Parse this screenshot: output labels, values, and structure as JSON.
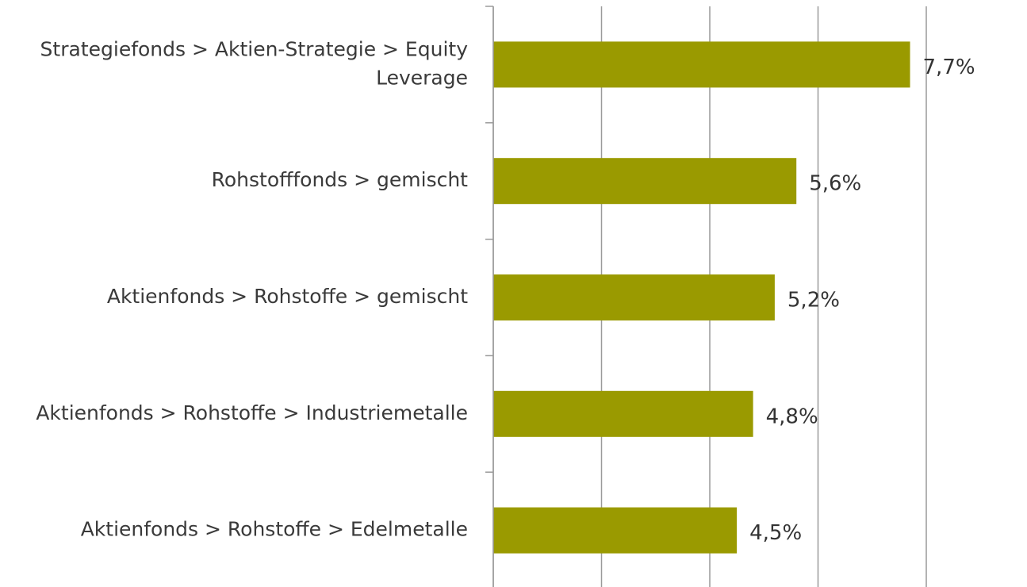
{
  "chart_data": {
    "type": "bar",
    "orientation": "horizontal",
    "categories": [
      "Strategiefonds > Aktien-Strategie > Equity Leverage",
      "Rohstofffonds > gemischt",
      "Aktienfonds > Rohstoffe > gemischt",
      "Aktienfonds > Rohstoffe > Industriemetalle",
      "Aktienfonds > Rohstoffe > Edelmetalle"
    ],
    "values": [
      7.7,
      5.6,
      5.2,
      4.8,
      4.5
    ],
    "value_labels": [
      "7,7%",
      "5,6%",
      "5,2%",
      "4,8%",
      "4,5%"
    ],
    "color": "#9a9a00",
    "xlim": [
      0,
      8
    ],
    "xticks": [
      0,
      2,
      4,
      6,
      8
    ],
    "grid": true
  }
}
